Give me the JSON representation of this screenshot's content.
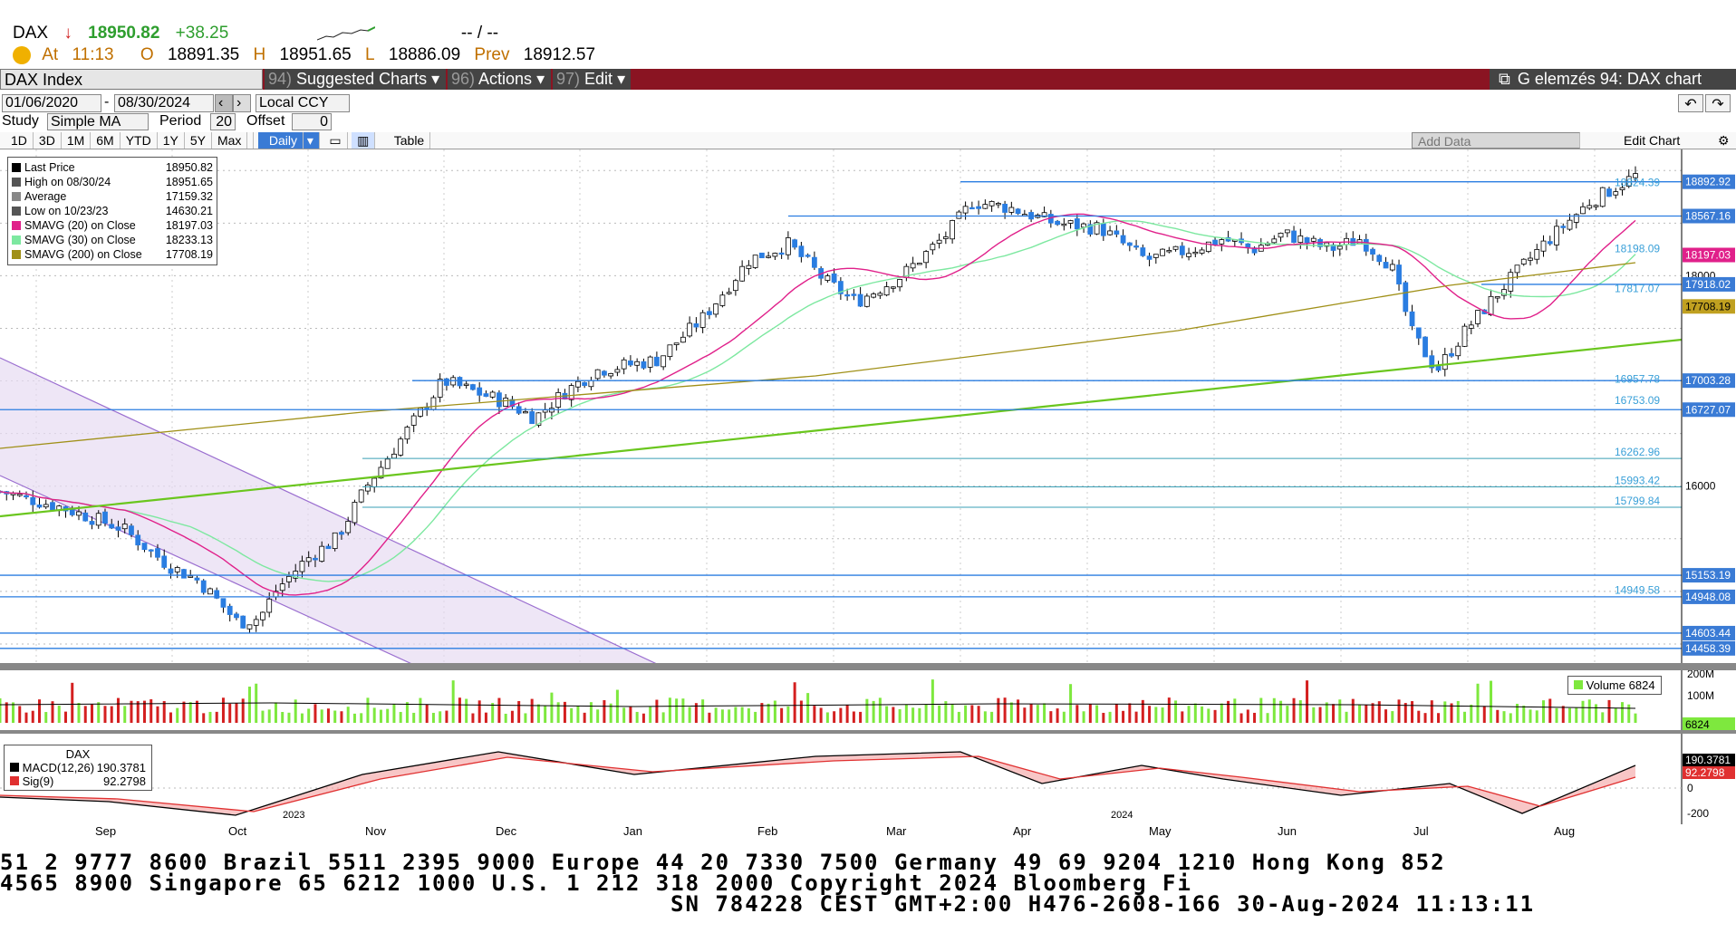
{
  "quote": {
    "symbol": "DAX",
    "arrow": "↓",
    "last": "18950.82",
    "change": "+38.25",
    "dashes": "-- / --",
    "at_label": "At",
    "time": "11:13",
    "open_label": "O",
    "open": "18891.35",
    "high_label": "H",
    "high": "18951.65",
    "low_label": "L",
    "low": "18886.09",
    "prev_label": "Prev",
    "prev": "18912.57"
  },
  "toolbar": {
    "security": "DAX Index",
    "suggested_num": "94)",
    "suggested": "Suggested Charts",
    "actions_num": "96)",
    "actions": "Actions",
    "edit_num": "97)",
    "edit": "Edit",
    "title": "G elemzés 94: DAX chart"
  },
  "controls": {
    "start_date": "01/06/2020",
    "end_date": "08/30/2024",
    "currency": "Local CCY",
    "study_label": "Study",
    "study": "Simple MA",
    "period_label": "Period",
    "period": "20",
    "offset_label": "Offset",
    "offset": "0",
    "add_data": "Add Data",
    "edit_chart": "Edit Chart",
    "table": "Table"
  },
  "ranges": [
    "1D",
    "3D",
    "1M",
    "6M",
    "YTD",
    "1Y",
    "5Y",
    "Max"
  ],
  "frequency": "Daily",
  "legend": [
    {
      "label": "Last Price",
      "value": "18950.82",
      "color": "#000000"
    },
    {
      "label": "High on 08/30/24",
      "value": "18951.65",
      "color": "#555555"
    },
    {
      "label": "Average",
      "value": "17159.32",
      "color": "#888888"
    },
    {
      "label": "Low on 10/23/23",
      "value": "14630.21",
      "color": "#555555"
    },
    {
      "label": "SMAVG (20)  on Close",
      "value": "18197.03",
      "color": "#e0208a"
    },
    {
      "label": "SMAVG (30)  on Close",
      "value": "18233.13",
      "color": "#7de8a0"
    },
    {
      "label": "SMAVG (200)  on Close",
      "value": "17708.19",
      "color": "#a09018"
    }
  ],
  "price_tags": [
    {
      "label": "18892.92",
      "bg": "#3a7bd5"
    },
    {
      "label": "18567.16",
      "bg": "#3a7bd5"
    },
    {
      "label": "18197.03",
      "bg": "#e0208a"
    },
    {
      "label": "18000",
      "bg": "none"
    },
    {
      "label": "17918.02",
      "bg": "#3a7bd5"
    },
    {
      "label": "17708.19",
      "bg": "#c0a020"
    },
    {
      "label": "17003.28",
      "bg": "#3a7bd5"
    },
    {
      "label": "16727.07",
      "bg": "#3a7bd5"
    },
    {
      "label": "16000",
      "bg": "none"
    },
    {
      "label": "15153.19",
      "bg": "#3a7bd5"
    },
    {
      "label": "14948.08",
      "bg": "#3a7bd5"
    },
    {
      "label": "14603.44",
      "bg": "#3a7bd5"
    },
    {
      "label": "14458.39",
      "bg": "#3a7bd5"
    }
  ],
  "level_labels": [
    "18824.39",
    "18198.09",
    "17817.07",
    "16957.78",
    "16753.09",
    "16262.96",
    "15993.42",
    "15799.84",
    "14949.58"
  ],
  "volume": {
    "label": "Volume",
    "value": "6824",
    "ticks": [
      "200M",
      "100M"
    ],
    "tag": "6824"
  },
  "macd": {
    "title": "DAX",
    "macd_label": "MACD(12,26)",
    "macd_value": "190.3781",
    "sig_label": "Sig(9)",
    "sig_value": "92.2798",
    "ticks": [
      "0",
      "-200"
    ],
    "tag1": "190.3781",
    "tag2": "92.2798"
  },
  "x_axis": [
    "Sep",
    "Oct",
    "Nov",
    "Dec",
    "Jan",
    "Feb",
    "Mar",
    "Apr",
    "May",
    "Jun",
    "Jul",
    "Aug"
  ],
  "years": [
    "2023",
    "2024"
  ],
  "footer": {
    "line1": "51 2 9777 8600 Brazil 5511 2395 9000 Europe 44 20 7330 7500 Germany 49 69 9204 1210 Hong Kong 852",
    "line2": " 4565 8900        Singapore 65 6212 1000        U.S. 1 212 318 2000          Copyright 2024 Bloomberg Fi",
    "line3": "SN 784228 CEST GMT+2:00 H476-2608-166 30-Aug-2024 11:13:11"
  }
}
